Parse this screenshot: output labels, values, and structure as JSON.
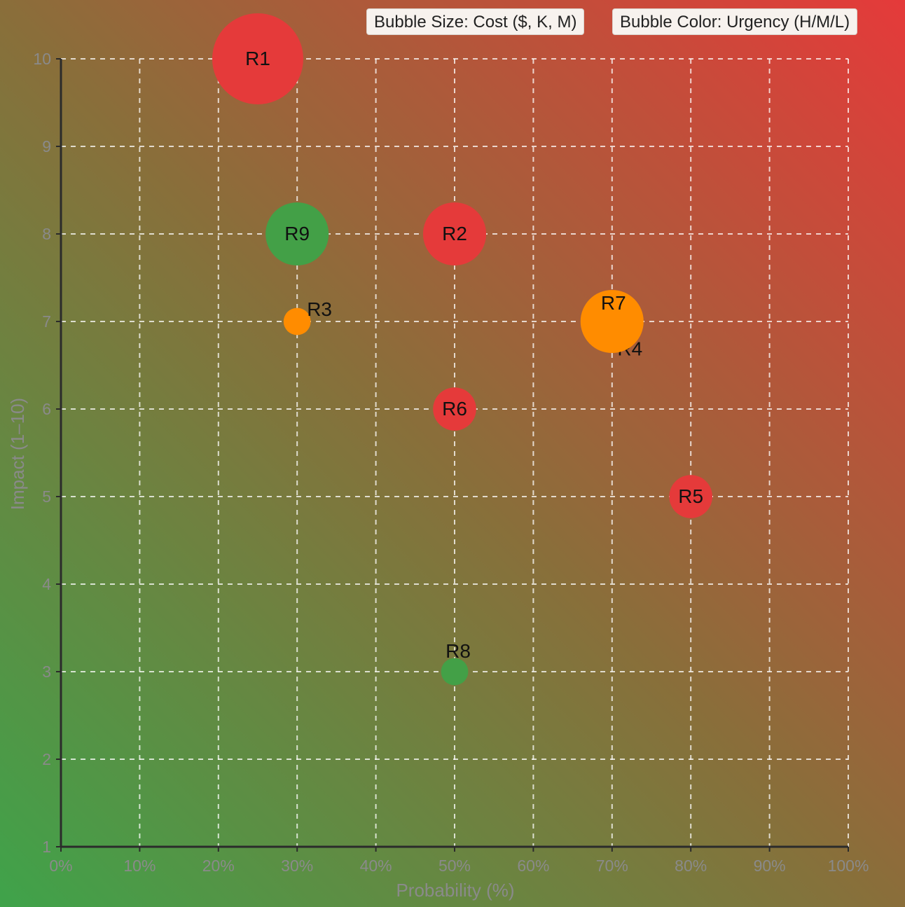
{
  "legend": {
    "size_label": "Bubble Size: Cost ($, K, M)",
    "color_label": "Bubble Color: Urgency (H/M/L)"
  },
  "chart_data": {
    "type": "scatter",
    "title": "",
    "xlabel": "Probability (%)",
    "ylabel": "Impact (1–10)",
    "xlim": [
      0,
      100
    ],
    "ylim": [
      1,
      10
    ],
    "x_ticks": [
      0,
      10,
      20,
      30,
      40,
      50,
      60,
      70,
      80,
      90,
      100
    ],
    "x_tick_labels": [
      "0%",
      "10%",
      "20%",
      "30%",
      "40%",
      "50%",
      "60%",
      "70%",
      "80%",
      "90%",
      "100%"
    ],
    "y_ticks": [
      1,
      2,
      3,
      4,
      5,
      6,
      7,
      8,
      9,
      10
    ],
    "y_tick_labels": [
      "1",
      "2",
      "3",
      "4",
      "5",
      "6",
      "7",
      "8",
      "9",
      "10"
    ],
    "grid": true,
    "legend_placement": "top-right",
    "background": {
      "low_risk_color": "#3fa34a",
      "high_risk_color": "#e53a3a"
    },
    "urgency_colors": {
      "H": "#e53a3a",
      "M": "#ff8c00",
      "L": "#43a047"
    },
    "points": [
      {
        "label": "R1",
        "x": 25,
        "y": 10,
        "urgency": "H",
        "size_rank": 10
      },
      {
        "label": "R2",
        "x": 50,
        "y": 8,
        "urgency": "H",
        "size_rank": 6.5
      },
      {
        "label": "R3",
        "x": 30,
        "y": 7,
        "urgency": "M",
        "size_rank": 2
      },
      {
        "label": "R4",
        "x": 70.5,
        "y": 6.9,
        "urgency": "M",
        "size_rank": 1,
        "outlined": true
      },
      {
        "label": "R5",
        "x": 80,
        "y": 5,
        "urgency": "H",
        "size_rank": 4
      },
      {
        "label": "R6",
        "x": 50,
        "y": 6,
        "urgency": "H",
        "size_rank": 4
      },
      {
        "label": "R7",
        "x": 70,
        "y": 7,
        "urgency": "M",
        "size_rank": 6.5
      },
      {
        "label": "R8",
        "x": 50,
        "y": 3,
        "urgency": "L",
        "size_rank": 2
      },
      {
        "label": "R9",
        "x": 30,
        "y": 8,
        "urgency": "L",
        "size_rank": 6.5
      }
    ]
  }
}
